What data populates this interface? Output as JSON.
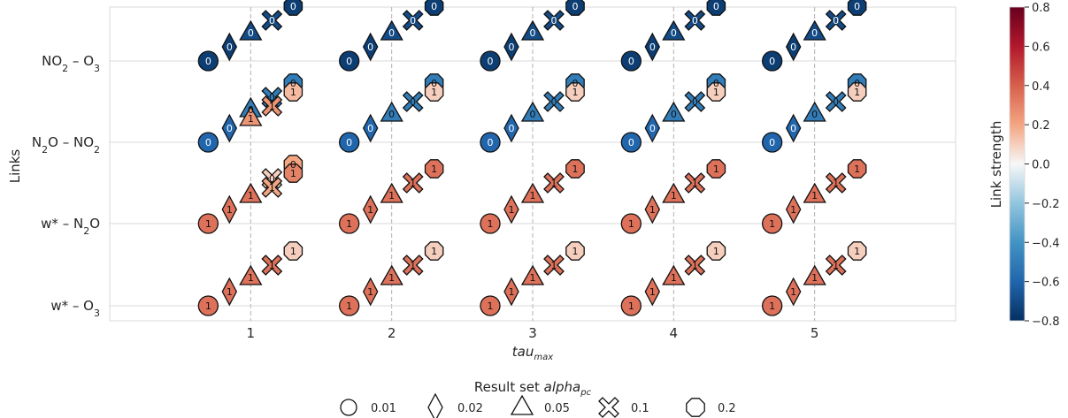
{
  "chart_data": {
    "type": "scatter",
    "xlabel": "tau",
    "xlabel_sub": "max",
    "ylabel": "Links",
    "x_ticks": [
      "1",
      "2",
      "3",
      "4",
      "5"
    ],
    "xlim": [
      0,
      6
    ],
    "y_categories": [
      {
        "base": "NO",
        "sub": "2",
        "rest": " – O",
        "sub2": "3"
      },
      {
        "base": "N",
        "sub": "2",
        "rest": "O – NO",
        "sub2": "2"
      },
      {
        "base": "w* – N",
        "sub": "2",
        "rest": "O",
        "sub2": ""
      },
      {
        "base": "w* – O",
        "sub": "3",
        "rest": "",
        "sub2": ""
      }
    ],
    "grid": true,
    "alpha_levels": [
      "0.01",
      "0.02",
      "0.05",
      "0.1",
      "0.2"
    ],
    "marker_shapes": [
      "circle",
      "diamond",
      "triangle",
      "x",
      "octagon"
    ],
    "legend": {
      "title_prefix": "Result set ",
      "title_var": "alpha",
      "title_sub": "pc",
      "placement": "bottom"
    },
    "colorbar": {
      "label": "Link strength",
      "range": [
        -0.8,
        0.8
      ],
      "ticks": [
        "0.8",
        "0.6",
        "0.4",
        "0.2",
        "0.0",
        "−0.2",
        "−0.4",
        "−0.6",
        "−0.8"
      ],
      "colormap": "RdBu_r"
    },
    "series": [
      {
        "link_index": 0,
        "points": [
          {
            "alpha": "0.01",
            "strengths": [
              -0.75
            ],
            "lags": [
              "0"
            ]
          },
          {
            "alpha": "0.02",
            "strengths": [
              -0.75
            ],
            "lags": [
              "0"
            ]
          },
          {
            "alpha": "0.05",
            "strengths": [
              -0.7
            ],
            "lags": [
              "0"
            ]
          },
          {
            "alpha": "0.1",
            "strengths": [
              -0.7
            ],
            "lags": [
              "0"
            ]
          },
          {
            "alpha": "0.2",
            "strengths": [
              -0.75
            ],
            "lags": [
              "0"
            ]
          }
        ]
      },
      {
        "link_index": 1,
        "points": [
          {
            "alpha": "0.01",
            "strengths": [
              -0.6
            ],
            "lags": [
              "0"
            ]
          },
          {
            "alpha": "0.02",
            "strengths": [
              -0.6
            ],
            "lags": [
              "0"
            ]
          },
          {
            "alpha": "0.05",
            "strengths": [
              -0.5
            ],
            "lags": [
              "0"
            ]
          },
          {
            "alpha": "0.1",
            "strengths": [
              -0.5
            ],
            "lags": [
              "0"
            ]
          },
          {
            "alpha": "0.2",
            "strengths": [
              0.1,
              -0.5
            ],
            "lags": [
              "1",
              "0"
            ]
          }
        ]
      },
      {
        "link_index": 2,
        "points": [
          {
            "alpha": "0.01",
            "strengths": [
              0.35
            ],
            "lags": [
              "1"
            ]
          },
          {
            "alpha": "0.02",
            "strengths": [
              0.35
            ],
            "lags": [
              "1"
            ]
          },
          {
            "alpha": "0.05",
            "strengths": [
              0.35
            ],
            "lags": [
              "1"
            ]
          },
          {
            "alpha": "0.1",
            "strengths": [
              0.35
            ],
            "lags": [
              "1"
            ]
          },
          {
            "alpha": "0.2",
            "strengths": [
              0.35
            ],
            "lags": [
              "1"
            ]
          }
        ]
      },
      {
        "link_index": 3,
        "points": [
          {
            "alpha": "0.01",
            "strengths": [
              0.35
            ],
            "lags": [
              "1"
            ]
          },
          {
            "alpha": "0.02",
            "strengths": [
              0.35
            ],
            "lags": [
              "1"
            ]
          },
          {
            "alpha": "0.05",
            "strengths": [
              0.35
            ],
            "lags": [
              "1"
            ]
          },
          {
            "alpha": "0.1",
            "strengths": [
              0.35
            ],
            "lags": [
              "1"
            ]
          },
          {
            "alpha": "0.2",
            "strengths": [
              0.1
            ],
            "lags": [
              "1"
            ]
          }
        ]
      }
    ],
    "tau1_extras": [
      {
        "link_index": 1,
        "points": [
          {
            "alpha": "0.05",
            "strengths": [
              0.25,
              -0.5
            ],
            "lags": [
              "1",
              "0"
            ]
          },
          {
            "alpha": "0.1",
            "strengths": [
              0.25,
              -0.5
            ],
            "lags": [
              "1",
              "0"
            ]
          },
          {
            "alpha": "0.2",
            "strengths": [
              0.15,
              -0.5
            ],
            "lags": [
              "1",
              "0"
            ]
          }
        ]
      },
      {
        "link_index": 2,
        "points": [
          {
            "alpha": "0.1",
            "strengths": [
              0.2,
              0.1
            ],
            "lags": [
              "1",
              "0"
            ]
          },
          {
            "alpha": "0.2",
            "strengths": [
              0.3,
              0.2
            ],
            "lags": [
              "1",
              "0"
            ]
          }
        ]
      }
    ]
  }
}
